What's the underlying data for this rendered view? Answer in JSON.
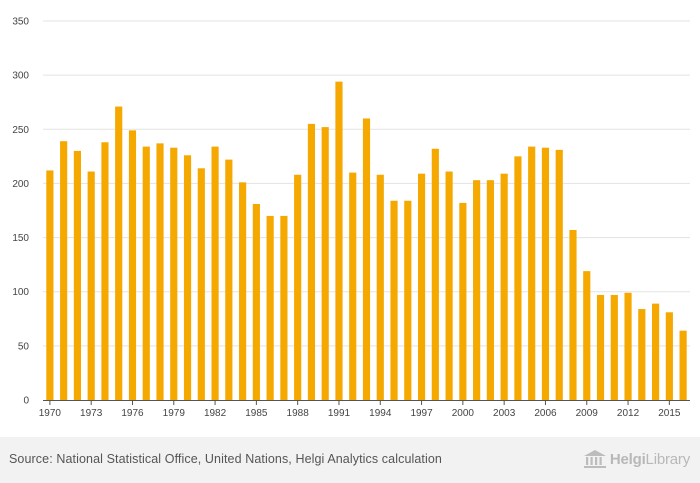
{
  "chart_data": {
    "type": "bar",
    "title": "",
    "xlabel": "",
    "ylabel": "",
    "ylim": [
      0,
      350
    ],
    "yticks": [
      0,
      50,
      100,
      150,
      200,
      250,
      300,
      350
    ],
    "grid": true,
    "legend": "none",
    "bar_color": "#f5a800",
    "categories": [
      "1970",
      "1971",
      "1972",
      "1973",
      "1974",
      "1975",
      "1976",
      "1977",
      "1978",
      "1979",
      "1980",
      "1981",
      "1982",
      "1983",
      "1984",
      "1985",
      "1986",
      "1987",
      "1988",
      "1989",
      "1990",
      "1991",
      "1992",
      "1993",
      "1994",
      "1995",
      "1996",
      "1997",
      "1998",
      "1999",
      "2000",
      "2001",
      "2002",
      "2003",
      "2004",
      "2005",
      "2006",
      "2007",
      "2008",
      "2009",
      "2010",
      "2011",
      "2012",
      "2013",
      "2014",
      "2015",
      "2016"
    ],
    "xtick_labels": [
      "1970",
      "1973",
      "1976",
      "1979",
      "1982",
      "1985",
      "1988",
      "1991",
      "1994",
      "1997",
      "2000",
      "2003",
      "2006",
      "2009",
      "2012",
      "2015"
    ],
    "values": [
      212,
      239,
      230,
      211,
      238,
      271,
      249,
      234,
      237,
      233,
      226,
      214,
      234,
      222,
      201,
      181,
      170,
      170,
      208,
      255,
      252,
      294,
      210,
      260,
      208,
      184,
      184,
      209,
      232,
      211,
      182,
      203,
      203,
      209,
      225,
      234,
      233,
      231,
      157,
      119,
      97,
      97,
      99,
      84,
      89,
      81,
      64
    ]
  },
  "footer": {
    "source": "Source: National Statistical Office, United Nations, Helgi Analytics calculation",
    "brand_name": "Helgi",
    "brand_suffix": "Library"
  },
  "colors": {
    "bar": "#f5a800",
    "grid": "#e3e3e3",
    "footer_bg": "#f2f2f2"
  }
}
